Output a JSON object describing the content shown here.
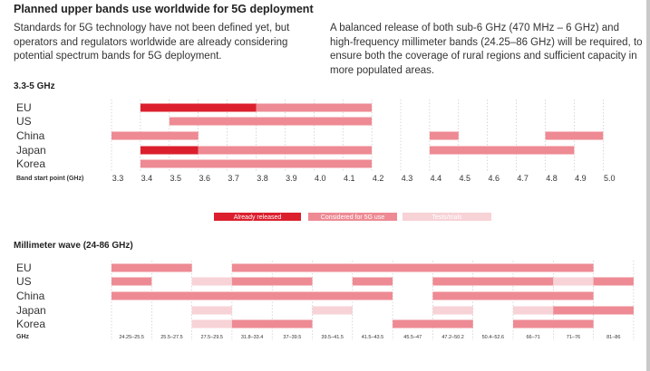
{
  "title": "Planned upper bands use worldwide for 5G deployment",
  "intro_left": "Standards for 5G technology have not been defined yet, but operators and regulators worldwide are already considering potential spectrum bands for 5G deployment.",
  "intro_right": "A balanced release of both sub-6 GHz (470 MHz – 6 GHz) and high-frequency millimeter bands (24.25–86 GHz) will be required, to ensure both the coverage of rural regions and sufficient capacity in more populated areas.",
  "colors": {
    "released": "#dc1f2d",
    "considered": "#ee8a93",
    "tests": "#f7d2d6",
    "grid": "#bdbdbd"
  },
  "legend": [
    {
      "key": "released",
      "label": "Already released"
    },
    {
      "key": "considered",
      "label": "Considered for 5G use"
    },
    {
      "key": "tests",
      "label": "Tests/trials"
    }
  ],
  "chart_data": [
    {
      "type": "bar",
      "section_title": "3.3-5 GHz",
      "xlabel": "Band start point (GHz)",
      "ticks": [
        "3.3",
        "3.4",
        "3.5",
        "3.6",
        "3.7",
        "3.8",
        "3.9",
        "4.0",
        "4.1",
        "4.2",
        "4.3",
        "4.4",
        "4.5",
        "4.6",
        "4.7",
        "4.8",
        "4.9",
        "5.0"
      ],
      "rows": [
        {
          "name": "EU",
          "bands": [
            {
              "start": 3.4,
              "end": 3.8,
              "status": "released"
            },
            {
              "start": 3.8,
              "end": 4.2,
              "status": "considered"
            }
          ]
        },
        {
          "name": "US",
          "bands": [
            {
              "start": 3.5,
              "end": 4.2,
              "status": "considered"
            }
          ]
        },
        {
          "name": "China",
          "bands": [
            {
              "start": 3.3,
              "end": 3.6,
              "status": "considered"
            },
            {
              "start": 4.4,
              "end": 4.5,
              "status": "considered"
            },
            {
              "start": 4.8,
              "end": 5.0,
              "status": "considered"
            }
          ]
        },
        {
          "name": "Japan",
          "bands": [
            {
              "start": 3.4,
              "end": 3.6,
              "status": "released"
            },
            {
              "start": 3.6,
              "end": 4.2,
              "status": "considered"
            },
            {
              "start": 4.4,
              "end": 4.9,
              "status": "considered"
            }
          ]
        },
        {
          "name": "Korea",
          "bands": [
            {
              "start": 3.4,
              "end": 4.2,
              "status": "considered"
            }
          ]
        }
      ]
    },
    {
      "type": "bar",
      "section_title": "Millimeter wave (24-86 GHz)",
      "xlabel": "GHz",
      "ticks": [
        "24.25–25.5",
        "25.5–27.5",
        "27.5–29.5",
        "31.8–33.4",
        "37–39.5",
        "39.5–41.5",
        "41.5–43.5",
        "45.5–47",
        "47.2–50.2",
        "50.4–52.6",
        "66–71",
        "71–76",
        "81–86"
      ],
      "rows": [
        {
          "name": "EU",
          "bands": [
            {
              "start": 0,
              "end": 2,
              "status": "considered"
            },
            {
              "start": 3,
              "end": 12,
              "status": "considered"
            }
          ]
        },
        {
          "name": "US",
          "bands": [
            {
              "start": 0,
              "end": 1,
              "status": "considered"
            },
            {
              "start": 2,
              "end": 3,
              "status": "tests"
            },
            {
              "start": 3,
              "end": 5,
              "status": "considered"
            },
            {
              "start": 6,
              "end": 7,
              "status": "considered"
            },
            {
              "start": 8,
              "end": 11,
              "status": "considered"
            },
            {
              "start": 11,
              "end": 12,
              "status": "tests"
            },
            {
              "start": 12,
              "end": 13,
              "status": "considered"
            }
          ]
        },
        {
          "name": "China",
          "bands": [
            {
              "start": 0,
              "end": 7,
              "status": "considered"
            },
            {
              "start": 8,
              "end": 12,
              "status": "considered"
            }
          ]
        },
        {
          "name": "Japan",
          "bands": [
            {
              "start": 2,
              "end": 3,
              "status": "tests"
            },
            {
              "start": 5,
              "end": 6,
              "status": "tests"
            },
            {
              "start": 8,
              "end": 9,
              "status": "tests"
            },
            {
              "start": 10,
              "end": 11,
              "status": "tests"
            },
            {
              "start": 11,
              "end": 13,
              "status": "considered"
            }
          ]
        },
        {
          "name": "Korea",
          "bands": [
            {
              "start": 2,
              "end": 3,
              "status": "tests"
            },
            {
              "start": 3,
              "end": 5,
              "status": "considered"
            },
            {
              "start": 7,
              "end": 9,
              "status": "considered"
            },
            {
              "start": 10,
              "end": 12,
              "status": "considered"
            }
          ]
        }
      ]
    }
  ]
}
